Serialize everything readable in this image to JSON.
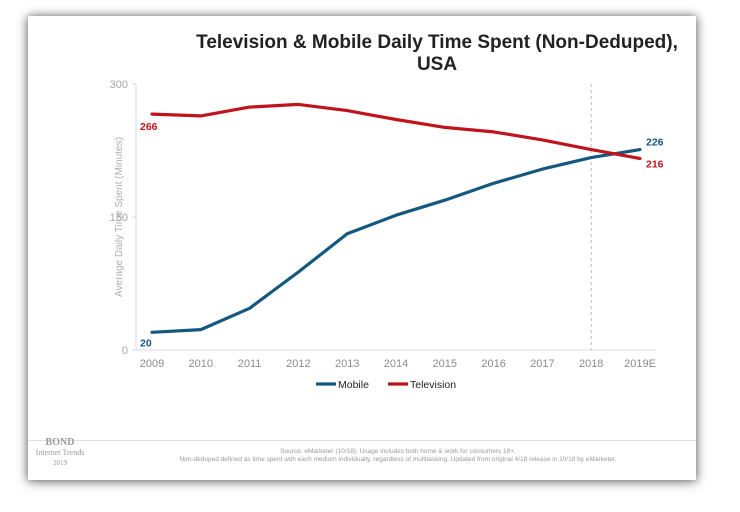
{
  "page": {
    "title": "Television & Mobile Daily Time Spent (Non-Deduped), USA",
    "source_line1": "Source: eMarketer (10/18). Usage includes both home & work for consumers 18+.",
    "source_line2": "Non-deduped defined as time spent with each medium individually, regardless of multitasking. Updated from original 4/18 release in 10/18 by eMarketer.",
    "brand": {
      "name": "BOND",
      "sub": "Internet Trends",
      "year": "2019"
    }
  },
  "chart_data": {
    "type": "line",
    "title": "Television & Mobile Daily Time Spent (Non-Deduped), USA",
    "xlabel": "",
    "ylabel": "Average Daily Time Spent (Minutes)",
    "categories": [
      "2009",
      "2010",
      "2011",
      "2012",
      "2013",
      "2014",
      "2015",
      "2016",
      "2017",
      "2018",
      "2019E"
    ],
    "ylim": [
      0,
      300
    ],
    "yticks": [
      0,
      150,
      300
    ],
    "grid": false,
    "legend": "bottom",
    "dashed_marker_category": "2018",
    "series": [
      {
        "name": "Mobile",
        "color": "#15587f",
        "values": [
          20,
          23,
          47,
          88,
          131,
          152,
          169,
          188,
          204,
          217,
          226
        ],
        "start_label": "20",
        "end_label": "226"
      },
      {
        "name": "Television",
        "color": "#c0141c",
        "values": [
          266,
          264,
          274,
          277,
          270,
          260,
          251,
          246,
          237,
          226,
          216
        ],
        "start_label": "266",
        "end_label": "216"
      }
    ]
  }
}
